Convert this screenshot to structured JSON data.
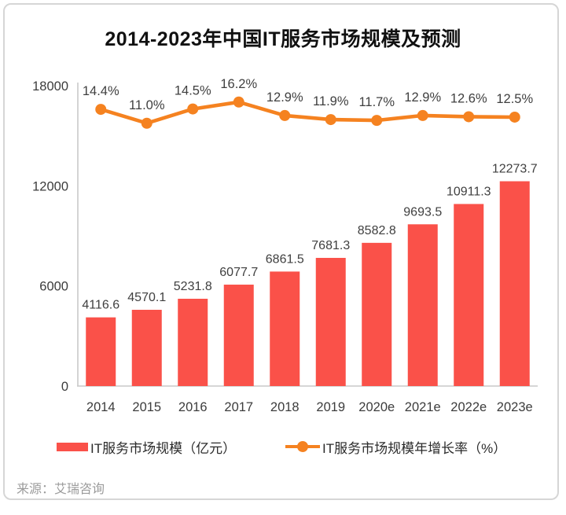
{
  "card": {
    "title": "2014-2023年中国IT服务市场规模及预测",
    "source": "来源：艾瑞咨询"
  },
  "legend": {
    "bar_label": "IT服务市场规模（亿元）",
    "line_label": "IT服务市场规模年增长率（%）"
  },
  "colors": {
    "bar": "#FA5149",
    "line": "#F58220",
    "axis_line": "#C9C9C9",
    "label_text": "#3F3F3F",
    "title_text": "#111111",
    "source_text": "#9B9B9B",
    "card_border": "#D6D6D6"
  },
  "chart_data": {
    "type": "bar",
    "subtype": "combo-bar-line",
    "title": "2014-2023年中国IT服务市场规模及预测",
    "categories": [
      "2014",
      "2015",
      "2016",
      "2017",
      "2018",
      "2019",
      "2020e",
      "2021e",
      "2022e",
      "2023e"
    ],
    "series": [
      {
        "name": "IT服务市场规模（亿元）",
        "type": "bar",
        "axis": "left",
        "color": "#FA5149",
        "values": [
          4116.6,
          4570.1,
          5231.8,
          6077.7,
          6861.5,
          7681.3,
          8582.8,
          9693.5,
          10911.3,
          12273.7
        ]
      },
      {
        "name": "IT服务市场规模年增长率（%）",
        "type": "line",
        "axis": "right",
        "color": "#F58220",
        "value_suffix": "%",
        "values": [
          14.4,
          11.0,
          14.5,
          16.2,
          12.9,
          11.9,
          11.7,
          12.9,
          12.6,
          12.5
        ]
      }
    ],
    "y_axis": {
      "min": 0,
      "max": 18000,
      "ticks": [
        0,
        6000,
        12000,
        18000
      ]
    },
    "r_axis": {
      "min": -53.4,
      "max": 20.2,
      "visible": false
    },
    "grid": false,
    "data_labels": true,
    "legend_position": "bottom",
    "source": "来源：艾瑞咨询"
  }
}
